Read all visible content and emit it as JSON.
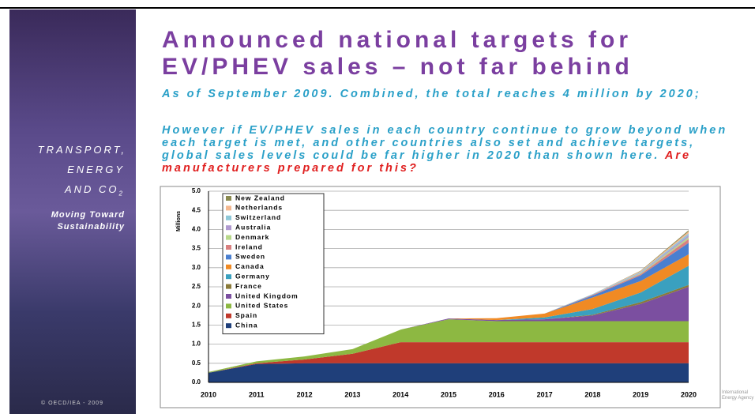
{
  "sidebar": {
    "lines": [
      "TRANSPORT,",
      "ENERGY",
      "AND CO"
    ],
    "subscript": "2",
    "tagline": [
      "Moving Toward",
      "Sustainability"
    ],
    "copyright": "© OECD/IEA - 2009"
  },
  "logo": [
    "International",
    "Energy Agency"
  ],
  "title": "Announced national targets for EV/PHEV sales – not far behind",
  "subtitle": "As of September 2009. Combined, the total reaches 4 million by 2020;",
  "body": "However if EV/PHEV sales in each country continue to grow beyond when each target is met, and other countries also set and achieve targets, global sales levels could be far higher in 2020 than shown here.",
  "highlight": "Are manufacturers prepared for this?",
  "chart_data": {
    "type": "stacked_area",
    "y_label": "Millions",
    "categories": [
      "2010",
      "2011",
      "2012",
      "2013",
      "2014",
      "2015",
      "2016",
      "2017",
      "2018",
      "2019",
      "2020"
    ],
    "ylim": [
      0,
      5
    ],
    "yticks": [
      {
        "value": 0,
        "label": "0.0"
      },
      {
        "value": 0.5,
        "label": "0.5"
      },
      {
        "value": 1,
        "label": "1.0"
      },
      {
        "value": 1.5,
        "label": "1.5"
      },
      {
        "value": 2,
        "label": "2.0"
      },
      {
        "value": 2.5,
        "label": "2.5"
      },
      {
        "value": 3,
        "label": "3.0"
      },
      {
        "value": 3.5,
        "label": "3.5"
      },
      {
        "value": 4,
        "label": "4.0"
      },
      {
        "value": 4.5,
        "label": "4.5"
      },
      {
        "value": 5,
        "label": "5.0"
      }
    ],
    "grid": true,
    "series": [
      {
        "name": "China",
        "color": "#1f3f7a",
        "values": [
          0.25,
          0.48,
          0.5,
          0.5,
          0.5,
          0.5,
          0.5,
          0.5,
          0.5,
          0.5,
          0.5
        ]
      },
      {
        "name": "Spain",
        "color": "#c0392b",
        "values": [
          0,
          0.02,
          0.1,
          0.25,
          0.55,
          0.55,
          0.55,
          0.55,
          0.55,
          0.55,
          0.55
        ]
      },
      {
        "name": "United States",
        "color": "#8db842",
        "values": [
          0.02,
          0.05,
          0.08,
          0.12,
          0.33,
          0.6,
          0.55,
          0.55,
          0.55,
          0.55,
          0.55
        ]
      },
      {
        "name": "United Kingdom",
        "color": "#7b4fa0",
        "values": [
          0,
          0,
          0,
          0,
          0,
          0.02,
          0.03,
          0.05,
          0.15,
          0.45,
          0.9
        ]
      },
      {
        "name": "France",
        "color": "#8a7a3a",
        "values": [
          0,
          0,
          0,
          0,
          0,
          0,
          0,
          0,
          0.02,
          0.05,
          0.05
        ]
      },
      {
        "name": "Germany",
        "color": "#3aa0bf",
        "values": [
          0,
          0,
          0,
          0,
          0,
          0,
          0,
          0.05,
          0.15,
          0.25,
          0.5
        ]
      },
      {
        "name": "Canada",
        "color": "#f08a24",
        "values": [
          0,
          0,
          0,
          0,
          0,
          0,
          0.05,
          0.1,
          0.3,
          0.3,
          0.3
        ]
      },
      {
        "name": "Sweden",
        "color": "#4a7fd0",
        "values": [
          0,
          0,
          0,
          0,
          0,
          0,
          0,
          0,
          0.05,
          0.15,
          0.3
        ]
      },
      {
        "name": "Ireland",
        "color": "#d98080",
        "values": [
          0,
          0,
          0,
          0,
          0,
          0,
          0,
          0,
          0.02,
          0.03,
          0.1
        ]
      },
      {
        "name": "Denmark",
        "color": "#b8d88a",
        "values": [
          0,
          0,
          0,
          0,
          0,
          0,
          0,
          0,
          0,
          0.02,
          0.05
        ]
      },
      {
        "name": "Australia",
        "color": "#b09ad0",
        "values": [
          0,
          0,
          0,
          0,
          0,
          0,
          0,
          0,
          0,
          0.02,
          0.05
        ]
      },
      {
        "name": "Switzerland",
        "color": "#8fc8d8",
        "values": [
          0,
          0,
          0,
          0,
          0,
          0,
          0,
          0,
          0.02,
          0.02,
          0.05
        ]
      },
      {
        "name": "Netherlands",
        "color": "#f4b890",
        "values": [
          0,
          0,
          0,
          0,
          0,
          0,
          0,
          0,
          0,
          0.02,
          0.05
        ]
      },
      {
        "name": "New Zealand",
        "color": "#8a8a50",
        "values": [
          0,
          0,
          0,
          0,
          0,
          0,
          0,
          0,
          0,
          0.01,
          0.03
        ]
      }
    ]
  }
}
